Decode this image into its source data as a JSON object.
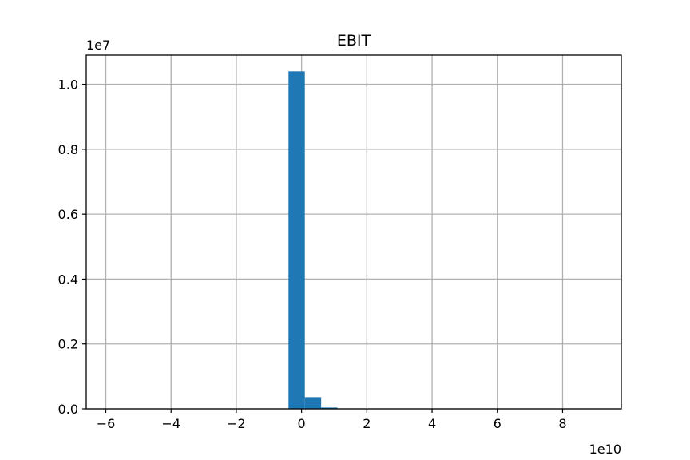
{
  "chart_data": {
    "type": "bar",
    "title": "EBIT",
    "xlabel": "",
    "ylabel": "",
    "x_offset_label": "1e10",
    "y_offset_label": "1e7",
    "xlim": [
      -6.6,
      9.8
    ],
    "ylim": [
      0,
      1.09
    ],
    "x_ticks": [
      -6,
      -4,
      -2,
      0,
      2,
      4,
      6,
      8
    ],
    "x_tick_labels": [
      "−6",
      "−4",
      "−2",
      "0",
      "2",
      "4",
      "6",
      "8"
    ],
    "y_ticks": [
      0.0,
      0.2,
      0.4,
      0.6,
      0.8,
      1.0
    ],
    "y_tick_labels": [
      "0.0",
      "0.2",
      "0.4",
      "0.6",
      "0.8",
      "1.0"
    ],
    "grid": true,
    "bins": [
      {
        "x0": -0.4,
        "x1": 0.1,
        "value": 1.04
      },
      {
        "x0": 0.1,
        "x1": 0.6,
        "value": 0.036
      },
      {
        "x0": 0.6,
        "x1": 1.1,
        "value": 0.004
      }
    ]
  },
  "colors": {
    "bar": "#1f77b4",
    "grid": "#b0b0b0",
    "axes": "#000000"
  }
}
